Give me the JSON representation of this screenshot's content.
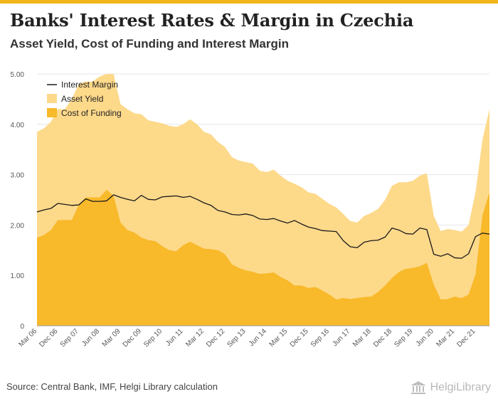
{
  "header": {
    "title": "Banks' Interest Rates & Margin in Czechia",
    "subtitle": "Asset Yield, Cost of Funding and Interest Margin"
  },
  "footer": {
    "source": "Source: Central Bank, IMF, Helgi Library calculation",
    "brand": "HelgiLibrary"
  },
  "colors": {
    "accent_bar": "#f2b51c",
    "asset_yield": "#fdd98a",
    "cost_of_funding": "#f8b92a",
    "interest_margin": "#1a1a1a",
    "grid": "#e6e6e6"
  },
  "chart_data": {
    "type": "area",
    "title": "",
    "xlabel": "",
    "ylabel": "",
    "ylim": [
      0,
      5
    ],
    "yticks": [
      "0",
      "1.00",
      "2.00",
      "3.00",
      "4.00",
      "5.00"
    ],
    "grid": true,
    "legend_position": "top-left",
    "x_start": "Mar 06",
    "frequency": "quarterly",
    "x_tick_labels": [
      "Mar 06",
      "Dec 06",
      "Sep 07",
      "Jun 08",
      "Mar 09",
      "Dec 09",
      "Sep 10",
      "Jun 11",
      "Mar 12",
      "Dec 12",
      "Sep 13",
      "Jun 14",
      "Mar 15",
      "Dec 15",
      "Sep 16",
      "Jun 17",
      "Mar 18",
      "Dec 18",
      "Sep 19",
      "Jun 20",
      "Mar 21",
      "Dec 21"
    ],
    "series": [
      {
        "name": "Interest Margin",
        "kind": "line",
        "values": [
          2.26,
          2.3,
          2.33,
          2.43,
          2.41,
          2.39,
          2.4,
          2.52,
          2.47,
          2.47,
          2.48,
          2.6,
          2.55,
          2.51,
          2.48,
          2.59,
          2.51,
          2.5,
          2.56,
          2.57,
          2.58,
          2.55,
          2.57,
          2.51,
          2.44,
          2.39,
          2.29,
          2.26,
          2.21,
          2.2,
          2.22,
          2.19,
          2.12,
          2.11,
          2.13,
          2.08,
          2.04,
          2.09,
          2.02,
          1.96,
          1.93,
          1.89,
          1.88,
          1.87,
          1.69,
          1.57,
          1.55,
          1.66,
          1.69,
          1.7,
          1.76,
          1.94,
          1.9,
          1.83,
          1.82,
          1.94,
          1.91,
          1.42,
          1.38,
          1.43,
          1.35,
          1.34,
          1.43,
          1.77,
          1.84,
          1.82
        ]
      },
      {
        "name": "Asset Yield",
        "kind": "area",
        "values": [
          3.85,
          3.92,
          4.05,
          4.3,
          4.3,
          4.5,
          4.8,
          4.85,
          4.85,
          4.95,
          5.05,
          5.0,
          4.4,
          4.3,
          4.22,
          4.2,
          4.08,
          4.05,
          4.02,
          3.97,
          3.95,
          4.0,
          4.1,
          4.0,
          3.85,
          3.8,
          3.65,
          3.55,
          3.35,
          3.28,
          3.25,
          3.22,
          3.08,
          3.05,
          3.1,
          2.98,
          2.88,
          2.82,
          2.75,
          2.65,
          2.62,
          2.52,
          2.42,
          2.35,
          2.22,
          2.08,
          2.05,
          2.18,
          2.24,
          2.32,
          2.5,
          2.78,
          2.85,
          2.85,
          2.88,
          2.98,
          3.03,
          2.18,
          1.88,
          1.92,
          1.9,
          1.87,
          2.0,
          2.65,
          3.7,
          4.3
        ]
      },
      {
        "name": "Cost of Funding",
        "kind": "area",
        "values": [
          1.75,
          1.8,
          1.9,
          2.1,
          2.1,
          2.1,
          2.4,
          2.55,
          2.55,
          2.55,
          2.7,
          2.58,
          2.05,
          1.9,
          1.85,
          1.75,
          1.7,
          1.68,
          1.58,
          1.5,
          1.48,
          1.6,
          1.67,
          1.6,
          1.53,
          1.52,
          1.5,
          1.42,
          1.22,
          1.15,
          1.1,
          1.07,
          1.03,
          1.04,
          1.06,
          0.97,
          0.9,
          0.8,
          0.8,
          0.75,
          0.77,
          0.7,
          0.62,
          0.52,
          0.55,
          0.53,
          0.55,
          0.57,
          0.58,
          0.67,
          0.8,
          0.95,
          1.07,
          1.13,
          1.15,
          1.18,
          1.25,
          0.82,
          0.52,
          0.53,
          0.58,
          0.55,
          0.62,
          1.02,
          2.2,
          2.65
        ]
      }
    ]
  }
}
